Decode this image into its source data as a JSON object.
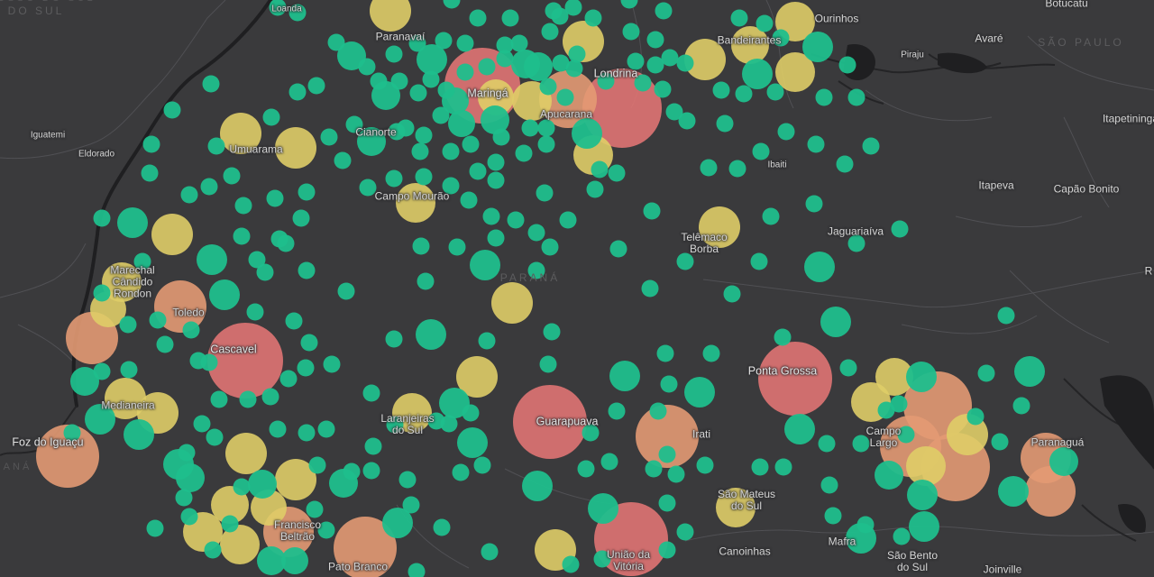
{
  "map": {
    "type": "proportional-symbol map",
    "colors": {
      "background": "#3a3a3c",
      "land_lines": "#505054",
      "water": "#1f1f21",
      "label": "#d6d6d6",
      "region_label": "#5c5c5e",
      "class_high": "#e07473",
      "class_mid_high": "#e39a73",
      "class_mid": "#dfcd67",
      "class_low": "#1fbe8c"
    },
    "region_labels": [
      "PARANÁ",
      "SÃO PAULO",
      "GROSSO DO SUL",
      "DO SUL",
      "RANÁ"
    ],
    "places": [
      {
        "name": "Loanda",
        "size": "small"
      },
      {
        "name": "Paranavaí",
        "size": "normal"
      },
      {
        "name": "Ourinhos",
        "size": "normal"
      },
      {
        "name": "Botucatu",
        "size": "normal"
      },
      {
        "name": "Bandeirantes",
        "size": "normal"
      },
      {
        "name": "Avaré",
        "size": "normal"
      },
      {
        "name": "Piraju",
        "size": "small"
      },
      {
        "name": "Londrina",
        "size": "major"
      },
      {
        "name": "Maringá",
        "size": "major"
      },
      {
        "name": "Apucarana",
        "size": "normal"
      },
      {
        "name": "Iguatemi",
        "size": "small"
      },
      {
        "name": "Eldorado",
        "size": "small"
      },
      {
        "name": "Cianorte",
        "size": "normal"
      },
      {
        "name": "Umuarama",
        "size": "normal"
      },
      {
        "name": "Itapetininga",
        "size": "normal"
      },
      {
        "name": "Ibaiti",
        "size": "small"
      },
      {
        "name": "Campo Mourão",
        "size": "normal"
      },
      {
        "name": "Itapeva",
        "size": "normal"
      },
      {
        "name": "Capão Bonito",
        "size": "normal"
      },
      {
        "name": "Telêmaco\nBorba",
        "size": "normal"
      },
      {
        "name": "Jaguariaíva",
        "size": "normal"
      },
      {
        "name": "Marechal\nCândido\nRondon",
        "size": "normal"
      },
      {
        "name": "Toledo",
        "size": "normal"
      },
      {
        "name": "Cascavel",
        "size": "major"
      },
      {
        "name": "Ponta Grossa",
        "size": "major"
      },
      {
        "name": "Medianeira",
        "size": "normal"
      },
      {
        "name": "Laranjeiras\ndo Sul",
        "size": "normal"
      },
      {
        "name": "Guarapuava",
        "size": "major"
      },
      {
        "name": "Irati",
        "size": "normal"
      },
      {
        "name": "Campo\nLargo",
        "size": "normal"
      },
      {
        "name": "Paranaguá",
        "size": "normal"
      },
      {
        "name": "Foz do Iguaçu",
        "size": "major"
      },
      {
        "name": "São Mateus\ndo Sul",
        "size": "normal"
      },
      {
        "name": "Francisco\nBeltrão",
        "size": "normal"
      },
      {
        "name": "Canoinhas",
        "size": "normal"
      },
      {
        "name": "Mafra",
        "size": "normal"
      },
      {
        "name": "São Bento\ndo Sul",
        "size": "normal"
      },
      {
        "name": "União da\nVitória",
        "size": "normal"
      },
      {
        "name": "Pato Branco",
        "size": "normal"
      },
      {
        "name": "Joinville",
        "size": "normal"
      },
      {
        "name": "R",
        "size": "normal"
      }
    ]
  }
}
